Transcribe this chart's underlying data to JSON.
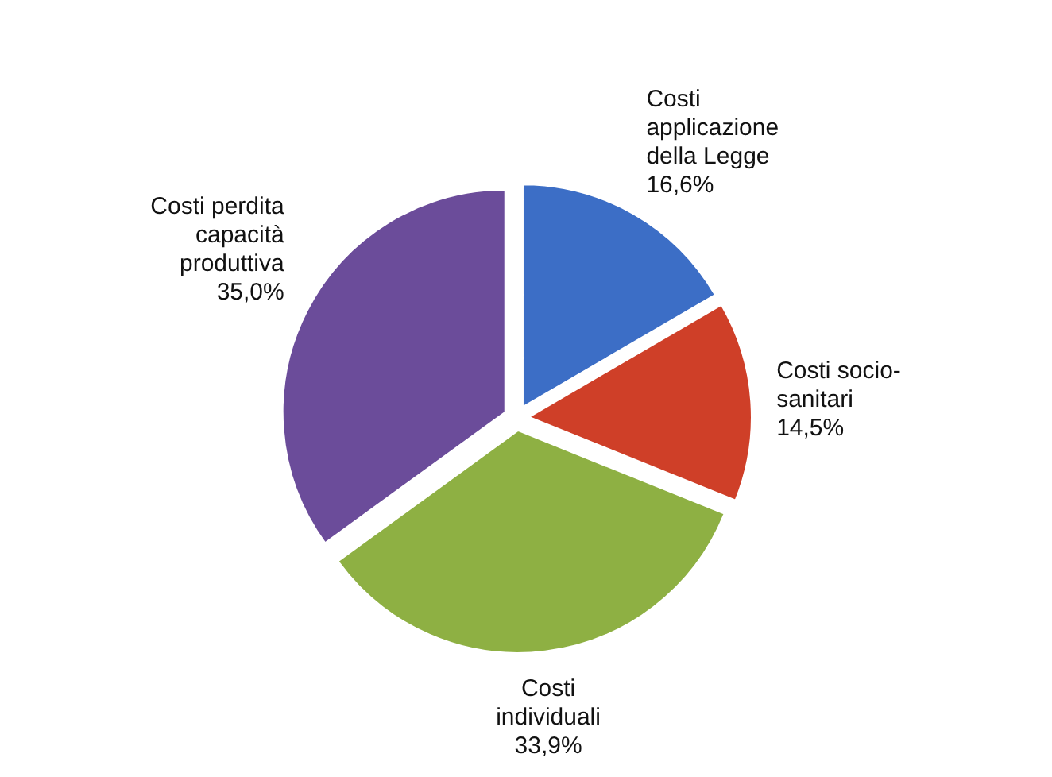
{
  "chart_data": {
    "type": "pie",
    "categories": [
      "Costi applicazione della Legge",
      "Costi socio-sanitari",
      "Costi individuali",
      "Costi perdita capacità produttiva"
    ],
    "values": [
      16.6,
      14.5,
      33.9,
      35.0
    ],
    "colors": [
      "#3c6ec6",
      "#cf3f28",
      "#8eb043",
      "#6b4c9a"
    ],
    "value_labels": [
      "16,6%",
      "14,5%",
      "33,9%",
      "35,0%"
    ],
    "legend": false
  }
}
